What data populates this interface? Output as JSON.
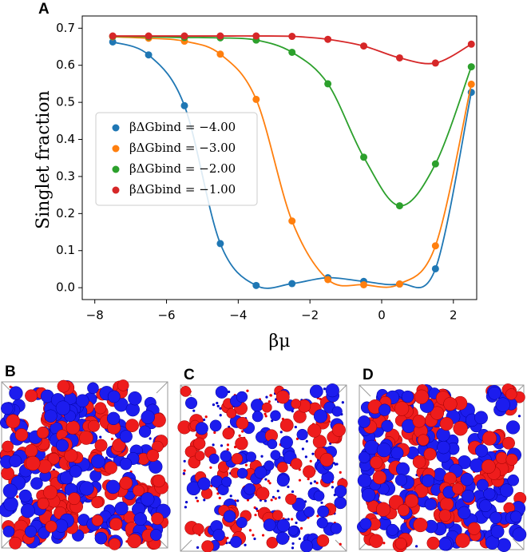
{
  "chart_data": {
    "type": "scatter-line",
    "panel_label": "A",
    "x_label": "βμ",
    "y_label": "Singlet fraction",
    "x": [
      -7.5,
      -6.5,
      -5.5,
      -4.5,
      -3.5,
      -2.5,
      -1.5,
      -0.5,
      0.5,
      1.5,
      2.5
    ],
    "series": [
      {
        "name": "βΔGbind = −4.00",
        "color": "#1f77b4",
        "values": [
          0.663,
          0.628,
          0.491,
          0.119,
          0.006,
          0.011,
          0.027,
          0.017,
          0.01,
          0.051,
          0.527
        ]
      },
      {
        "name": "βΔGbind = −3.00",
        "color": "#ff7f0e",
        "values": [
          0.677,
          0.673,
          0.665,
          0.63,
          0.508,
          0.18,
          0.022,
          0.008,
          0.01,
          0.113,
          0.549
        ]
      },
      {
        "name": "βΔGbind = −2.00",
        "color": "#2ca02c",
        "values": [
          0.678,
          0.677,
          0.675,
          0.674,
          0.668,
          0.635,
          0.55,
          0.352,
          0.221,
          0.334,
          0.596
        ]
      },
      {
        "name": "βΔGbind = −1.00",
        "color": "#d62728",
        "values": [
          0.679,
          0.679,
          0.679,
          0.679,
          0.679,
          0.678,
          0.67,
          0.652,
          0.62,
          0.606,
          0.657
        ]
      }
    ],
    "xlim": [
      -8.35,
      2.65
    ],
    "xticks": [
      {
        "value": -8,
        "label": "−8"
      },
      {
        "value": -6,
        "label": "−6"
      },
      {
        "value": -4,
        "label": "−4"
      },
      {
        "value": -2,
        "label": "−2"
      },
      0,
      2
    ],
    "ylim": [
      -0.032,
      0.733
    ],
    "yticks": [
      {
        "value": 0,
        "label": "0.0"
      },
      0.1,
      0.2,
      0.3,
      0.4,
      0.5,
      0.6,
      0.7
    ],
    "legend": "center-left",
    "grid": false
  },
  "snapshots": [
    {
      "label": "B"
    },
    {
      "label": "C"
    },
    {
      "label": "D"
    }
  ]
}
